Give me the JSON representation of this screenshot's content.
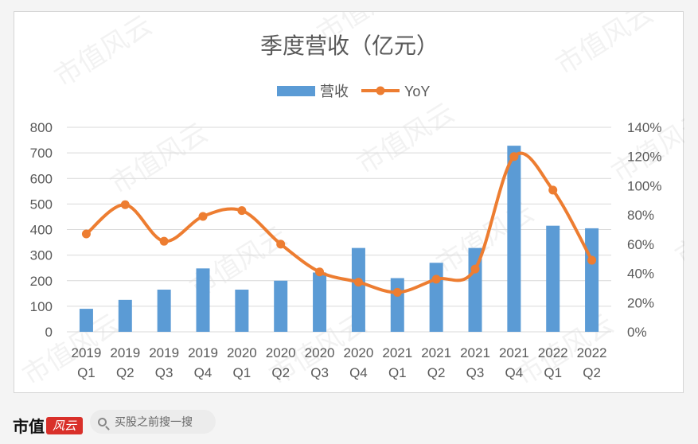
{
  "watermark": "市值风云",
  "chart_data": {
    "type": "bar+line",
    "title": "季度营收（亿元）",
    "categories": [
      [
        "2019",
        "Q1"
      ],
      [
        "2019",
        "Q2"
      ],
      [
        "2019",
        "Q3"
      ],
      [
        "2019",
        "Q4"
      ],
      [
        "2020",
        "Q1"
      ],
      [
        "2020",
        "Q2"
      ],
      [
        "2020",
        "Q3"
      ],
      [
        "2020",
        "Q4"
      ],
      [
        "2021",
        "Q1"
      ],
      [
        "2021",
        "Q2"
      ],
      [
        "2021",
        "Q3"
      ],
      [
        "2021",
        "Q4"
      ],
      [
        "2022",
        "Q1"
      ],
      [
        "2022",
        "Q2"
      ]
    ],
    "series": [
      {
        "name": "营收",
        "type": "bar",
        "axis": "left",
        "color": "#5b9bd5",
        "values": [
          90,
          125,
          165,
          248,
          165,
          200,
          232,
          328,
          210,
          270,
          328,
          728,
          415,
          405
        ]
      },
      {
        "name": "YoY",
        "type": "line",
        "axis": "right",
        "color": "#ed7d31",
        "unit": "%",
        "values": [
          67,
          87,
          62,
          79,
          83,
          60,
          41,
          34,
          27,
          36,
          43,
          120,
          97,
          49
        ]
      }
    ],
    "y_left": {
      "min": 0,
      "max": 800,
      "step": 100,
      "ticks": [
        "0",
        "100",
        "200",
        "300",
        "400",
        "500",
        "600",
        "700",
        "800"
      ]
    },
    "y_right": {
      "min": 0,
      "max": 140,
      "step": 20,
      "ticks": [
        "0%",
        "20%",
        "40%",
        "60%",
        "80%",
        "100%",
        "120%",
        "140%"
      ]
    },
    "grid": true,
    "legend": "top-center"
  },
  "footer": {
    "brand_text": "市值",
    "brand_seal": "风云",
    "search_placeholder": "买股之前搜一搜"
  }
}
